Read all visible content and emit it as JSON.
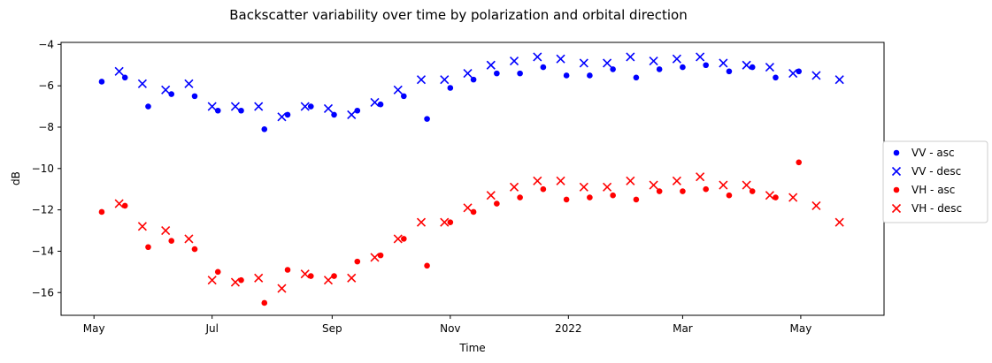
{
  "chart_data": {
    "type": "scatter",
    "title": "Backscatter variability over time by polarization and orbital direction",
    "xlabel": "Time",
    "ylabel": "dB",
    "x_axis_type": "date",
    "xlim": [
      "2021-04-14",
      "2022-06-13"
    ],
    "ylim": [
      -17.1,
      -3.9
    ],
    "x_ticks": [
      {
        "date": "2021-05-01",
        "label": "May"
      },
      {
        "date": "2021-07-01",
        "label": "Jul"
      },
      {
        "date": "2021-09-01",
        "label": "Sep"
      },
      {
        "date": "2021-11-01",
        "label": "Nov"
      },
      {
        "date": "2022-01-01",
        "label": "2022"
      },
      {
        "date": "2022-03-01",
        "label": "Mar"
      },
      {
        "date": "2022-05-01",
        "label": "May"
      }
    ],
    "y_ticks": [
      -16,
      -14,
      -12,
      -10,
      -8,
      -6,
      -4
    ],
    "grid": false,
    "legend": {
      "placement": "right",
      "outside": true
    },
    "series": [
      {
        "name": "VV - asc",
        "marker": "circle",
        "color": "#0000ff",
        "points": [
          {
            "x": "2021-05-05",
            "y": -5.8
          },
          {
            "x": "2021-05-17",
            "y": -5.6
          },
          {
            "x": "2021-05-29",
            "y": -7.0
          },
          {
            "x": "2021-06-10",
            "y": -6.4
          },
          {
            "x": "2021-06-22",
            "y": -6.5
          },
          {
            "x": "2021-07-04",
            "y": -7.2
          },
          {
            "x": "2021-07-16",
            "y": -7.2
          },
          {
            "x": "2021-07-28",
            "y": -8.1
          },
          {
            "x": "2021-08-09",
            "y": -7.4
          },
          {
            "x": "2021-08-21",
            "y": -7.0
          },
          {
            "x": "2021-09-02",
            "y": -7.4
          },
          {
            "x": "2021-09-14",
            "y": -7.2
          },
          {
            "x": "2021-09-26",
            "y": -6.9
          },
          {
            "x": "2021-10-08",
            "y": -6.5
          },
          {
            "x": "2021-10-20",
            "y": -7.6
          },
          {
            "x": "2021-11-01",
            "y": -6.1
          },
          {
            "x": "2021-11-13",
            "y": -5.7
          },
          {
            "x": "2021-11-25",
            "y": -5.4
          },
          {
            "x": "2021-12-07",
            "y": -5.4
          },
          {
            "x": "2021-12-19",
            "y": -5.1
          },
          {
            "x": "2021-12-31",
            "y": -5.5
          },
          {
            "x": "2022-01-12",
            "y": -5.5
          },
          {
            "x": "2022-01-24",
            "y": -5.2
          },
          {
            "x": "2022-02-05",
            "y": -5.6
          },
          {
            "x": "2022-02-17",
            "y": -5.2
          },
          {
            "x": "2022-03-01",
            "y": -5.1
          },
          {
            "x": "2022-03-13",
            "y": -5.0
          },
          {
            "x": "2022-03-25",
            "y": -5.3
          },
          {
            "x": "2022-04-06",
            "y": -5.1
          },
          {
            "x": "2022-04-18",
            "y": -5.6
          },
          {
            "x": "2022-04-30",
            "y": -5.3
          }
        ]
      },
      {
        "name": "VV - desc",
        "marker": "x",
        "color": "#0000ff",
        "points": [
          {
            "x": "2021-05-14",
            "y": -5.3
          },
          {
            "x": "2021-05-26",
            "y": -5.9
          },
          {
            "x": "2021-06-07",
            "y": -6.2
          },
          {
            "x": "2021-06-19",
            "y": -5.9
          },
          {
            "x": "2021-07-01",
            "y": -7.0
          },
          {
            "x": "2021-07-13",
            "y": -7.0
          },
          {
            "x": "2021-07-25",
            "y": -7.0
          },
          {
            "x": "2021-08-06",
            "y": -7.5
          },
          {
            "x": "2021-08-18",
            "y": -7.0
          },
          {
            "x": "2021-08-30",
            "y": -7.1
          },
          {
            "x": "2021-09-11",
            "y": -7.4
          },
          {
            "x": "2021-09-23",
            "y": -6.8
          },
          {
            "x": "2021-10-05",
            "y": -6.2
          },
          {
            "x": "2021-10-17",
            "y": -5.7
          },
          {
            "x": "2021-10-29",
            "y": -5.7
          },
          {
            "x": "2021-11-10",
            "y": -5.4
          },
          {
            "x": "2021-11-22",
            "y": -5.0
          },
          {
            "x": "2021-12-04",
            "y": -4.8
          },
          {
            "x": "2021-12-16",
            "y": -4.6
          },
          {
            "x": "2021-12-28",
            "y": -4.7
          },
          {
            "x": "2022-01-09",
            "y": -4.9
          },
          {
            "x": "2022-01-21",
            "y": -4.9
          },
          {
            "x": "2022-02-02",
            "y": -4.6
          },
          {
            "x": "2022-02-14",
            "y": -4.8
          },
          {
            "x": "2022-02-26",
            "y": -4.7
          },
          {
            "x": "2022-03-10",
            "y": -4.6
          },
          {
            "x": "2022-03-22",
            "y": -4.9
          },
          {
            "x": "2022-04-03",
            "y": -5.0
          },
          {
            "x": "2022-04-15",
            "y": -5.1
          },
          {
            "x": "2022-04-27",
            "y": -5.4
          },
          {
            "x": "2022-05-09",
            "y": -5.5
          },
          {
            "x": "2022-05-21",
            "y": -5.7
          }
        ]
      },
      {
        "name": "VH - asc",
        "marker": "circle",
        "color": "#ff0000",
        "points": [
          {
            "x": "2021-05-05",
            "y": -12.1
          },
          {
            "x": "2021-05-17",
            "y": -11.8
          },
          {
            "x": "2021-05-29",
            "y": -13.8
          },
          {
            "x": "2021-06-10",
            "y": -13.5
          },
          {
            "x": "2021-06-22",
            "y": -13.9
          },
          {
            "x": "2021-07-04",
            "y": -15.0
          },
          {
            "x": "2021-07-16",
            "y": -15.4
          },
          {
            "x": "2021-07-28",
            "y": -16.5
          },
          {
            "x": "2021-08-09",
            "y": -14.9
          },
          {
            "x": "2021-08-21",
            "y": -15.2
          },
          {
            "x": "2021-09-02",
            "y": -15.2
          },
          {
            "x": "2021-09-14",
            "y": -14.5
          },
          {
            "x": "2021-09-26",
            "y": -14.2
          },
          {
            "x": "2021-10-08",
            "y": -13.4
          },
          {
            "x": "2021-10-20",
            "y": -14.7
          },
          {
            "x": "2021-11-01",
            "y": -12.6
          },
          {
            "x": "2021-11-13",
            "y": -12.1
          },
          {
            "x": "2021-11-25",
            "y": -11.7
          },
          {
            "x": "2021-12-07",
            "y": -11.4
          },
          {
            "x": "2021-12-19",
            "y": -11.0
          },
          {
            "x": "2021-12-31",
            "y": -11.5
          },
          {
            "x": "2022-01-12",
            "y": -11.4
          },
          {
            "x": "2022-01-24",
            "y": -11.3
          },
          {
            "x": "2022-02-05",
            "y": -11.5
          },
          {
            "x": "2022-02-17",
            "y": -11.1
          },
          {
            "x": "2022-03-01",
            "y": -11.1
          },
          {
            "x": "2022-03-13",
            "y": -11.0
          },
          {
            "x": "2022-03-25",
            "y": -11.3
          },
          {
            "x": "2022-04-06",
            "y": -11.1
          },
          {
            "x": "2022-04-18",
            "y": -11.4
          },
          {
            "x": "2022-04-30",
            "y": -9.7
          }
        ]
      },
      {
        "name": "VH - desc",
        "marker": "x",
        "color": "#ff0000",
        "points": [
          {
            "x": "2021-05-14",
            "y": -11.7
          },
          {
            "x": "2021-05-26",
            "y": -12.8
          },
          {
            "x": "2021-06-07",
            "y": -13.0
          },
          {
            "x": "2021-06-19",
            "y": -13.4
          },
          {
            "x": "2021-07-01",
            "y": -15.4
          },
          {
            "x": "2021-07-13",
            "y": -15.5
          },
          {
            "x": "2021-07-25",
            "y": -15.3
          },
          {
            "x": "2021-08-06",
            "y": -15.8
          },
          {
            "x": "2021-08-18",
            "y": -15.1
          },
          {
            "x": "2021-08-30",
            "y": -15.4
          },
          {
            "x": "2021-09-11",
            "y": -15.3
          },
          {
            "x": "2021-09-23",
            "y": -14.3
          },
          {
            "x": "2021-10-05",
            "y": -13.4
          },
          {
            "x": "2021-10-17",
            "y": -12.6
          },
          {
            "x": "2021-10-29",
            "y": -12.6
          },
          {
            "x": "2021-11-10",
            "y": -11.9
          },
          {
            "x": "2021-11-22",
            "y": -11.3
          },
          {
            "x": "2021-12-04",
            "y": -10.9
          },
          {
            "x": "2021-12-16",
            "y": -10.6
          },
          {
            "x": "2021-12-28",
            "y": -10.6
          },
          {
            "x": "2022-01-09",
            "y": -10.9
          },
          {
            "x": "2022-01-21",
            "y": -10.9
          },
          {
            "x": "2022-02-02",
            "y": -10.6
          },
          {
            "x": "2022-02-14",
            "y": -10.8
          },
          {
            "x": "2022-02-26",
            "y": -10.6
          },
          {
            "x": "2022-03-10",
            "y": -10.4
          },
          {
            "x": "2022-03-22",
            "y": -10.8
          },
          {
            "x": "2022-04-03",
            "y": -10.8
          },
          {
            "x": "2022-04-15",
            "y": -11.3
          },
          {
            "x": "2022-04-27",
            "y": -11.4
          },
          {
            "x": "2022-05-09",
            "y": -11.8
          },
          {
            "x": "2022-05-21",
            "y": -12.6
          }
        ]
      }
    ]
  }
}
